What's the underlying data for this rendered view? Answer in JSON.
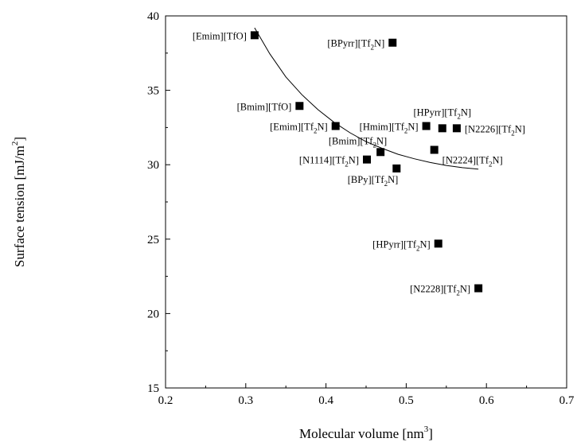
{
  "chart_data": {
    "type": "scatter",
    "xlabel": "Molecular volume [nm",
    "xlabel_sup": "3",
    "xlabel_end": "]",
    "ylabel": "Surface tension [mJ/m",
    "ylabel_sup": "2",
    "ylabel_end": "]",
    "xlim": [
      0.2,
      0.7
    ],
    "ylim": [
      15,
      40
    ],
    "xticks": [
      "0.2",
      "0.3",
      "0.4",
      "0.5",
      "0.6",
      "0.7"
    ],
    "yticks": [
      "15",
      "20",
      "25",
      "30",
      "35",
      "40"
    ],
    "grid": false,
    "legend": "none",
    "marker": "square",
    "points": [
      {
        "x": 0.311,
        "y": 38.7,
        "label": "[Emim][TfO]",
        "sub": "",
        "label_end": "",
        "anchor": "left"
      },
      {
        "x": 0.483,
        "y": 38.2,
        "label": "[BPyrr][Tf",
        "sub": "2",
        "label_end": "N]",
        "anchor": "left"
      },
      {
        "x": 0.367,
        "y": 33.95,
        "label": "[Bmim][TfO]",
        "sub": "",
        "label_end": "",
        "anchor": "left"
      },
      {
        "x": 0.412,
        "y": 32.6,
        "label": "[Emim][Tf",
        "sub": "2",
        "label_end": "N]",
        "anchor": "left"
      },
      {
        "x": 0.525,
        "y": 32.6,
        "label": "[Hmim][Tf",
        "sub": "2",
        "label_end": "N]",
        "anchor": "left"
      },
      {
        "x": 0.545,
        "y": 32.45,
        "label": "[HPyrr][Tf",
        "sub": "2",
        "label_end": "N]",
        "anchor": "above"
      },
      {
        "x": 0.563,
        "y": 32.45,
        "label": "[N2226][Tf",
        "sub": "2",
        "label_end": "N]",
        "anchor": "right"
      },
      {
        "x": 0.468,
        "y": 30.85,
        "label": "[Bmim][Tf",
        "sub": "2",
        "label_end": "N]",
        "anchor": "upleft"
      },
      {
        "x": 0.535,
        "y": 31.0,
        "label": "[N2224][Tf",
        "sub": "2",
        "label_end": "N]",
        "anchor": "belowright"
      },
      {
        "x": 0.451,
        "y": 30.35,
        "label": "[N1114][Tf",
        "sub": "2",
        "label_end": "N]",
        "anchor": "left"
      },
      {
        "x": 0.488,
        "y": 29.75,
        "label": "[BPy][Tf",
        "sub": "2",
        "label_end": "N]",
        "anchor": "belowleft"
      },
      {
        "x": 0.54,
        "y": 24.7,
        "label": "[HPyrr][Tf",
        "sub": "2",
        "label_end": "N]",
        "anchor": "left"
      },
      {
        "x": 0.59,
        "y": 21.7,
        "label": "[N2228][Tf",
        "sub": "2",
        "label_end": "N]",
        "anchor": "left"
      }
    ],
    "fit_curve": {
      "x": [
        0.311,
        0.33,
        0.35,
        0.37,
        0.39,
        0.41,
        0.43,
        0.45,
        0.47,
        0.49,
        0.51,
        0.53,
        0.55,
        0.57,
        0.59
      ],
      "y": [
        39.2,
        37.45,
        35.9,
        34.7,
        33.7,
        32.85,
        32.15,
        31.55,
        31.1,
        30.7,
        30.4,
        30.15,
        29.95,
        29.8,
        29.7
      ]
    }
  }
}
